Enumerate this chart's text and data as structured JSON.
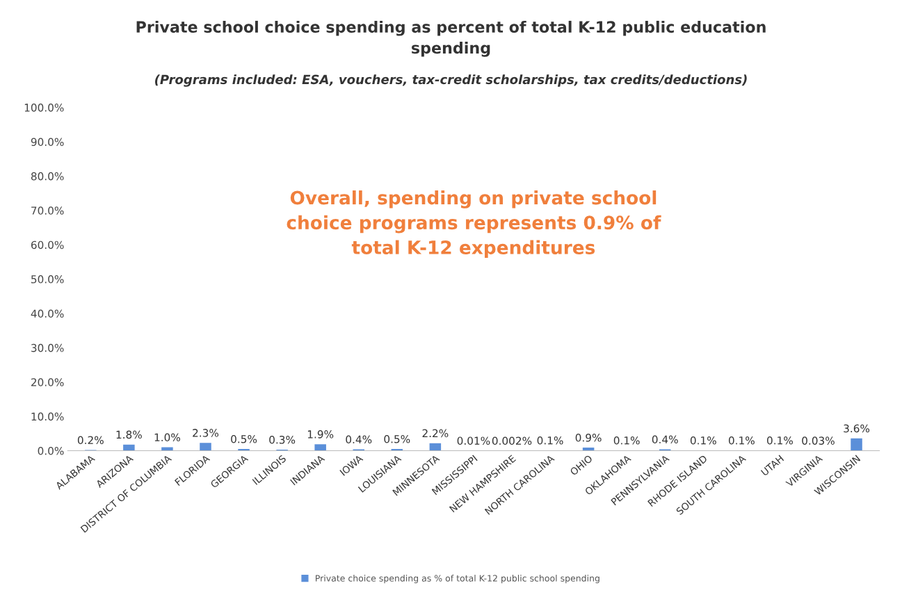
{
  "chart_data": {
    "type": "bar",
    "title": "Private school choice spending as percent of total K-12 public education spending",
    "subtitle": "(Programs included: ESA, vouchers, tax-credit scholarships, tax credits/deductions)",
    "categories": [
      "ALABAMA",
      "ARIZONA",
      "DISTRICT OF COLUMBIA",
      "FLORIDA",
      "GEORGIA",
      "ILLINOIS",
      "INDIANA",
      "IOWA",
      "LOUISIANA",
      "MINNESOTA",
      "MISSISSIPPI",
      "NEW HAMPSHIRE",
      "NORTH CAROLINA",
      "OHIO",
      "OKLAHOMA",
      "PENNSYLVANIA",
      "RHODE ISLAND",
      "SOUTH CAROLINA",
      "UTAH",
      "VIRGINIA",
      "WISCONSIN"
    ],
    "series": [
      {
        "name": "Private choice spending as % of total K-12 public school spending",
        "color": "#5b8fd9",
        "values": [
          0.2,
          1.8,
          1.0,
          2.3,
          0.5,
          0.3,
          1.9,
          0.4,
          0.5,
          2.2,
          0.01,
          0.002,
          0.1,
          0.9,
          0.1,
          0.4,
          0.1,
          0.1,
          0.1,
          0.03,
          3.6
        ],
        "value_labels": [
          "0.2%",
          "1.8%",
          "1.0%",
          "2.3%",
          "0.5%",
          "0.3%",
          "1.9%",
          "0.4%",
          "0.5%",
          "2.2%",
          "0.01%",
          "0.002%",
          "0.1%",
          "0.9%",
          "0.1%",
          "0.4%",
          "0.1%",
          "0.1%",
          "0.1%",
          "0.03%",
          "3.6%"
        ]
      }
    ],
    "ylim": [
      0,
      100
    ],
    "yticks": [
      {
        "value": 0,
        "label": "0.0%"
      },
      {
        "value": 10,
        "label": "10.0%"
      },
      {
        "value": 20,
        "label": "20.0%"
      },
      {
        "value": 30,
        "label": "30.0%"
      },
      {
        "value": 40,
        "label": "40.0%"
      },
      {
        "value": 50,
        "label": "50.0%"
      },
      {
        "value": 60,
        "label": "60.0%"
      },
      {
        "value": 70,
        "label": "70.0%"
      },
      {
        "value": 80,
        "label": "80.0%"
      },
      {
        "value": 90,
        "label": "90.0%"
      },
      {
        "value": 100,
        "label": "100.0%"
      }
    ],
    "annotations": [
      "Overall, spending on private school choice programs represents 0.9% of total K-12 expenditures"
    ],
    "grid": false,
    "legend": "bottom"
  }
}
